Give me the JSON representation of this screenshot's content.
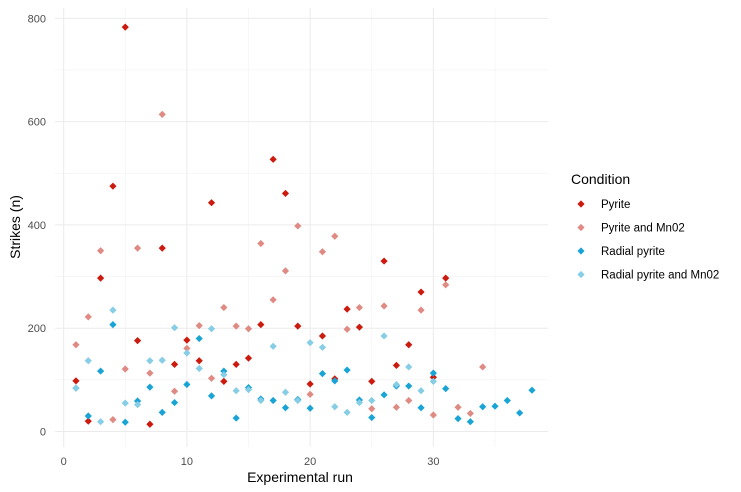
{
  "chart_data": {
    "type": "scatter",
    "xlabel": "Experimental run",
    "ylabel": "Strikes (n)",
    "xlim": [
      -0.7,
      39.3
    ],
    "ylim": [
      -30,
      820
    ],
    "x_ticks": [
      0,
      10,
      20,
      30
    ],
    "y_ticks": [
      0,
      200,
      400,
      600,
      800
    ],
    "x_minor": [
      5,
      15,
      25,
      35
    ],
    "y_minor": [
      100,
      300,
      500,
      700
    ],
    "grid": true,
    "legend": {
      "title": "Condition",
      "placement": "right"
    },
    "series": [
      {
        "name": "Pyrite",
        "color": "#cc1a0e",
        "points": [
          [
            1,
            98
          ],
          [
            2,
            20
          ],
          [
            3,
            297
          ],
          [
            4,
            475
          ],
          [
            5,
            783
          ],
          [
            6,
            176
          ],
          [
            7,
            14
          ],
          [
            8,
            355
          ],
          [
            9,
            130
          ],
          [
            10,
            177
          ],
          [
            11,
            137
          ],
          [
            12,
            443
          ],
          [
            13,
            97
          ],
          [
            14,
            130
          ],
          [
            15,
            142
          ],
          [
            16,
            207
          ],
          [
            17,
            527
          ],
          [
            18,
            461
          ],
          [
            19,
            204
          ],
          [
            20,
            92
          ],
          [
            21,
            185
          ],
          [
            22,
            102
          ],
          [
            23,
            237
          ],
          [
            24,
            202
          ],
          [
            25,
            97
          ],
          [
            26,
            330
          ],
          [
            27,
            128
          ],
          [
            28,
            168
          ],
          [
            29,
            270
          ],
          [
            30,
            105
          ],
          [
            31,
            297
          ]
        ]
      },
      {
        "name": "Pyrite and Mn02",
        "color": "#e08a84",
        "points": [
          [
            1,
            168
          ],
          [
            2,
            222
          ],
          [
            3,
            350
          ],
          [
            4,
            23
          ],
          [
            5,
            121
          ],
          [
            6,
            355
          ],
          [
            7,
            113
          ],
          [
            8,
            614
          ],
          [
            9,
            78
          ],
          [
            10,
            161
          ],
          [
            11,
            205
          ],
          [
            12,
            103
          ],
          [
            13,
            240
          ],
          [
            14,
            204
          ],
          [
            15,
            199
          ],
          [
            16,
            364
          ],
          [
            17,
            255
          ],
          [
            18,
            311
          ],
          [
            19,
            398
          ],
          [
            20,
            72
          ],
          [
            21,
            348
          ],
          [
            22,
            378
          ],
          [
            23,
            198
          ],
          [
            24,
            240
          ],
          [
            25,
            44
          ],
          [
            26,
            243
          ],
          [
            27,
            47
          ],
          [
            28,
            60
          ],
          [
            29,
            235
          ],
          [
            30,
            32
          ],
          [
            31,
            284
          ],
          [
            32,
            47
          ],
          [
            33,
            35
          ],
          [
            34,
            125
          ]
        ]
      },
      {
        "name": "Radial pyrite",
        "color": "#1aa4d6",
        "points": [
          [
            1,
            84
          ],
          [
            2,
            30
          ],
          [
            3,
            117
          ],
          [
            4,
            207
          ],
          [
            5,
            18
          ],
          [
            6,
            59
          ],
          [
            7,
            86
          ],
          [
            8,
            37
          ],
          [
            9,
            56
          ],
          [
            10,
            91
          ],
          [
            11,
            180
          ],
          [
            12,
            69
          ],
          [
            13,
            117
          ],
          [
            14,
            26
          ],
          [
            15,
            85
          ],
          [
            16,
            63
          ],
          [
            17,
            60
          ],
          [
            18,
            46
          ],
          [
            19,
            62
          ],
          [
            20,
            45
          ],
          [
            21,
            112
          ],
          [
            22,
            98
          ],
          [
            23,
            119
          ],
          [
            24,
            61
          ],
          [
            25,
            27
          ],
          [
            26,
            71
          ],
          [
            27,
            88
          ],
          [
            28,
            88
          ],
          [
            29,
            46
          ],
          [
            30,
            113
          ],
          [
            31,
            83
          ],
          [
            32,
            25
          ],
          [
            33,
            19
          ],
          [
            34,
            48
          ],
          [
            35,
            49
          ],
          [
            36,
            60
          ],
          [
            37,
            36
          ],
          [
            38,
            80
          ]
        ]
      },
      {
        "name": "Radial pyrite and Mn02",
        "color": "#86cde6",
        "points": [
          [
            1,
            84
          ],
          [
            2,
            137
          ],
          [
            3,
            19
          ],
          [
            4,
            235
          ],
          [
            5,
            55
          ],
          [
            6,
            52
          ],
          [
            7,
            137
          ],
          [
            8,
            138
          ],
          [
            9,
            201
          ],
          [
            10,
            152
          ],
          [
            11,
            122
          ],
          [
            12,
            199
          ],
          [
            13,
            110
          ],
          [
            14,
            79
          ],
          [
            15,
            81
          ],
          [
            16,
            60
          ],
          [
            17,
            165
          ],
          [
            18,
            76
          ],
          [
            19,
            60
          ],
          [
            20,
            172
          ],
          [
            21,
            163
          ],
          [
            22,
            48
          ],
          [
            23,
            37
          ],
          [
            24,
            56
          ],
          [
            25,
            60
          ],
          [
            26,
            185
          ],
          [
            27,
            91
          ],
          [
            28,
            125
          ],
          [
            29,
            79
          ],
          [
            30,
            97
          ]
        ]
      }
    ]
  }
}
